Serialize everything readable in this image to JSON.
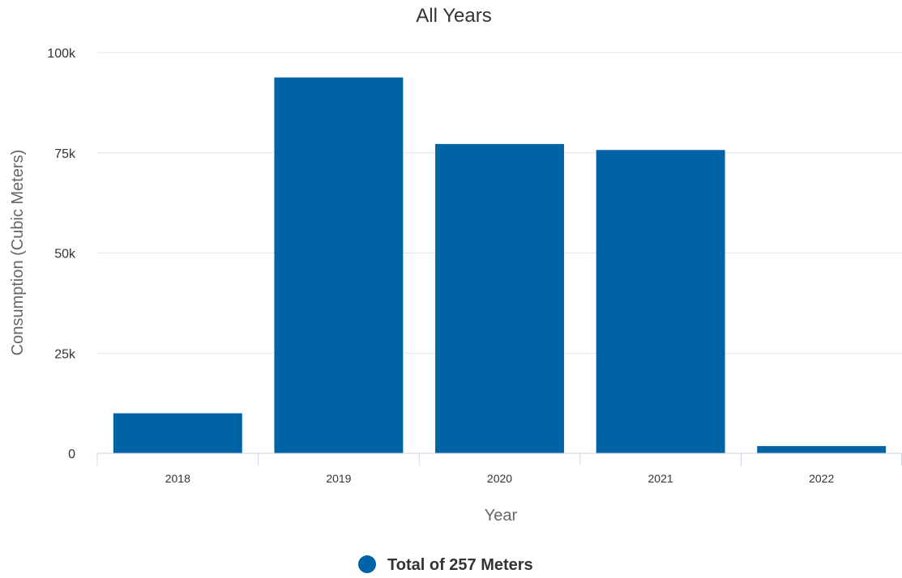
{
  "chart_data": {
    "type": "bar",
    "title": "All Years",
    "xlabel": "Year",
    "ylabel": "Consumption (Cubic Meters)",
    "categories": [
      "2018",
      "2019",
      "2020",
      "2021",
      "2022"
    ],
    "series": [
      {
        "name": "Total of 257 Meters",
        "values": [
          10000,
          93800,
          77200,
          75700,
          1800
        ],
        "color": "#0063a6"
      }
    ],
    "ylim": [
      0,
      100000
    ],
    "yticks": [
      0,
      25000,
      50000,
      75000,
      100000
    ],
    "ytick_labels": [
      "0",
      "25k",
      "50k",
      "75k",
      "100k"
    ],
    "grid": true,
    "legend_position": "bottom-center"
  }
}
